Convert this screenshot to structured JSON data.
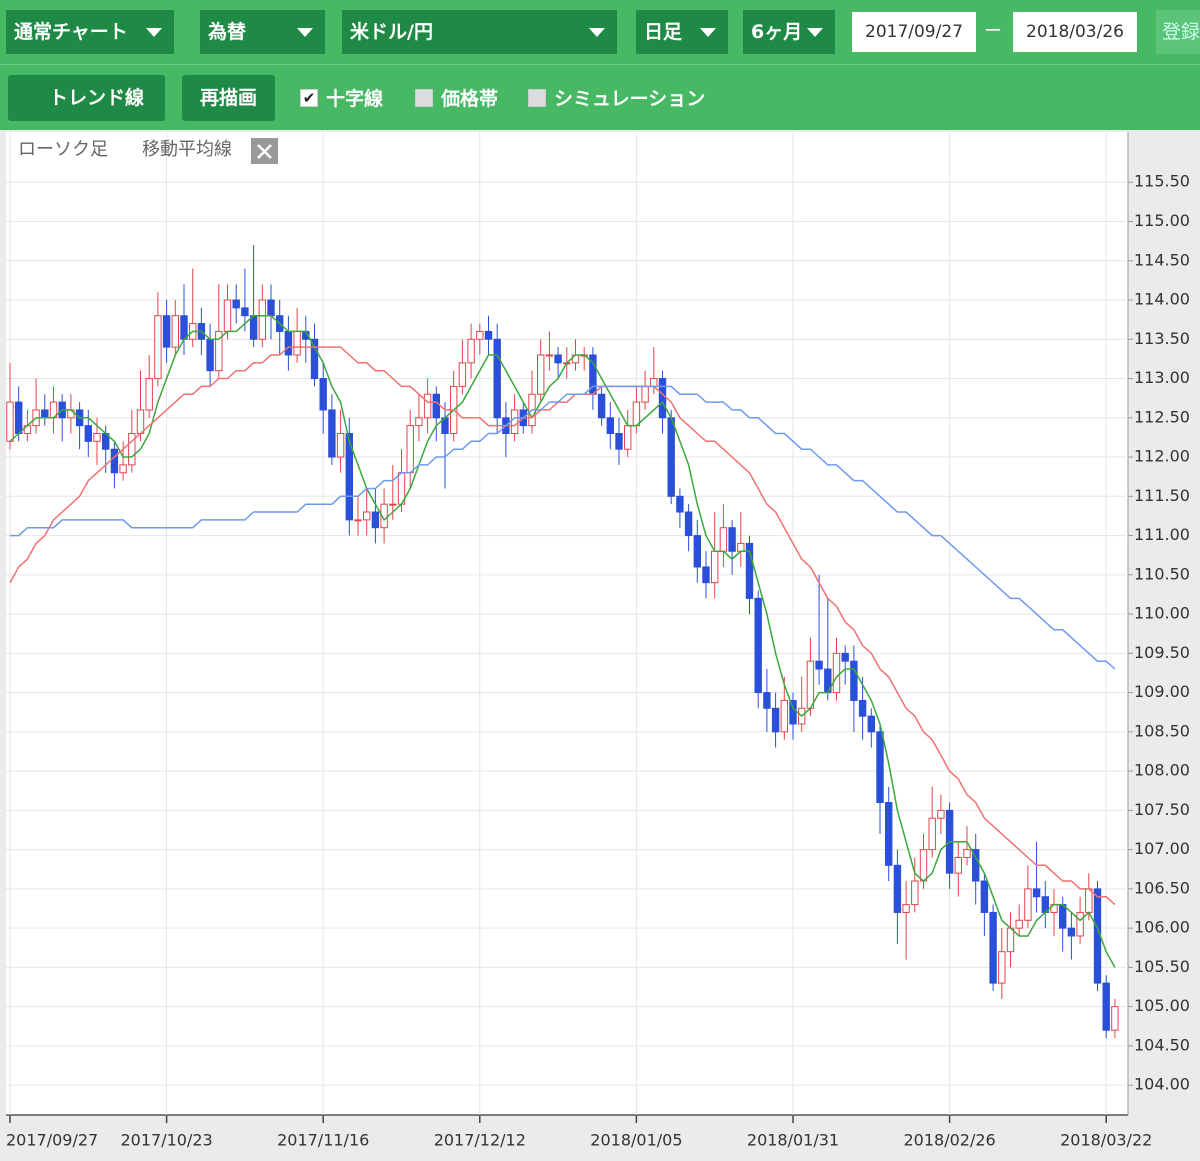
{
  "toolbar": {
    "row1": [
      {
        "label": "通常チャート",
        "dropdown": true
      },
      {
        "label": "為替",
        "dropdown": true
      },
      {
        "label": "米ドル/円",
        "dropdown": true
      },
      {
        "label": "日足",
        "dropdown": true
      },
      {
        "label": "6ヶ月",
        "dropdown": true
      }
    ],
    "date_from": "2017/09/27",
    "date_sep": "ー",
    "date_to": "2018/03/26",
    "register": "登録",
    "buttons": [
      "トレンド線",
      "再描画"
    ],
    "checkboxes": [
      {
        "label": "十字線",
        "checked": true
      },
      {
        "label": "価格帯",
        "checked": false
      },
      {
        "label": "シミュレーション",
        "checked": false
      }
    ]
  },
  "legend": [
    "ローソク足",
    "移動平均線"
  ],
  "chart_data": {
    "type": "candlestick",
    "up_color": "#e0454a",
    "down_color": "#2a4fd8",
    "grid": true,
    "categories": [
      "2017/09/27",
      null,
      null,
      null,
      null,
      null,
      null,
      null,
      null,
      null,
      null,
      null,
      null,
      null,
      null,
      null,
      null,
      null,
      "2017/10/23",
      null,
      null,
      null,
      null,
      null,
      null,
      null,
      null,
      null,
      null,
      null,
      null,
      null,
      null,
      null,
      null,
      null,
      "2017/11/16",
      null,
      null,
      null,
      null,
      null,
      null,
      null,
      null,
      null,
      null,
      null,
      null,
      null,
      null,
      null,
      null,
      null,
      "2017/12/12",
      null,
      null,
      null,
      null,
      null,
      null,
      null,
      null,
      null,
      null,
      null,
      null,
      null,
      null,
      null,
      null,
      null,
      "2018/01/05",
      null,
      null,
      null,
      null,
      null,
      null,
      null,
      null,
      null,
      null,
      null,
      null,
      null,
      null,
      null,
      null,
      null,
      "2018/01/31",
      null,
      null,
      null,
      null,
      null,
      null,
      null,
      null,
      null,
      null,
      null,
      null,
      null,
      null,
      null,
      null,
      null,
      "2018/02/26",
      null,
      null,
      null,
      null,
      null,
      null,
      null,
      null,
      null,
      null,
      null,
      null,
      null,
      null,
      null,
      null,
      null,
      "2018/03/22",
      null
    ],
    "open": [
      112.2,
      112.7,
      112.3,
      112.4,
      112.6,
      112.5,
      112.7,
      112.5,
      112.6,
      112.4,
      112.2,
      112.3,
      112.1,
      111.8,
      111.9,
      112.3,
      112.6,
      113.0,
      113.8,
      113.4,
      113.8,
      113.5,
      113.7,
      113.5,
      113.1,
      113.6,
      114.0,
      113.9,
      113.8,
      113.5,
      114.0,
      113.8,
      113.6,
      113.3,
      113.6,
      113.5,
      113.0,
      112.6,
      112.0,
      112.3,
      111.2,
      111.2,
      111.3,
      111.1,
      111.4,
      111.4,
      111.8,
      112.4,
      112.5,
      112.8,
      112.5,
      112.3,
      112.9,
      113.2,
      113.5,
      113.6,
      113.5,
      112.5,
      112.3,
      112.6,
      112.4,
      112.8,
      113.3,
      113.3,
      113.2,
      113.2,
      113.3,
      113.3,
      112.8,
      112.5,
      112.3,
      112.1,
      112.4,
      112.7,
      112.9,
      113.0,
      112.5,
      111.5,
      111.3,
      111.0,
      110.6,
      110.4,
      110.8,
      111.1,
      110.8,
      110.9,
      110.2,
      109.0,
      108.8,
      108.5,
      108.9,
      108.6,
      108.8,
      109.4,
      109.3,
      109.0,
      109.5,
      109.4,
      108.9,
      108.7,
      108.5,
      107.6,
      106.8,
      106.2,
      106.3,
      106.6,
      107.0,
      107.4,
      107.5,
      106.7,
      106.9,
      107.0,
      106.6,
      106.2,
      105.3,
      105.7,
      106.0,
      106.1,
      106.5,
      106.4,
      106.2,
      106.3,
      106.0,
      105.9,
      106.2,
      106.5,
      105.3,
      104.7
    ],
    "high": [
      113.2,
      112.9,
      112.6,
      113.0,
      112.8,
      112.9,
      112.8,
      112.8,
      112.7,
      112.6,
      112.5,
      112.4,
      112.2,
      112.2,
      112.6,
      113.1,
      113.3,
      114.1,
      114.0,
      114.0,
      114.2,
      114.4,
      113.9,
      113.7,
      114.2,
      114.2,
      114.2,
      114.4,
      114.7,
      114.2,
      114.2,
      114.0,
      113.8,
      113.9,
      113.8,
      113.7,
      113.2,
      112.8,
      112.6,
      112.5,
      111.5,
      111.6,
      111.6,
      111.6,
      111.9,
      112.1,
      112.6,
      112.8,
      113.0,
      112.9,
      112.7,
      113.1,
      113.5,
      113.7,
      113.7,
      113.8,
      113.7,
      112.7,
      112.8,
      112.7,
      113.1,
      113.5,
      113.6,
      113.4,
      113.4,
      113.5,
      113.4,
      113.4,
      112.9,
      112.7,
      112.5,
      112.6,
      112.9,
      113.1,
      113.4,
      113.1,
      112.6,
      111.6,
      111.4,
      111.2,
      110.8,
      111.3,
      111.4,
      111.2,
      111.3,
      111.0,
      110.3,
      109.3,
      109.0,
      109.2,
      109.0,
      109.2,
      109.7,
      110.5,
      110.2,
      109.7,
      109.6,
      109.6,
      109.2,
      108.8,
      108.6,
      107.8,
      107.0,
      106.6,
      106.9,
      107.2,
      107.8,
      107.7,
      107.6,
      107.1,
      107.3,
      107.2,
      106.7,
      106.3,
      106.0,
      106.2,
      106.3,
      106.8,
      107.1,
      106.6,
      106.5,
      106.4,
      106.2,
      106.4,
      106.7,
      106.6,
      105.4,
      105.1
    ],
    "low": [
      112.1,
      112.2,
      112.2,
      112.3,
      112.4,
      112.3,
      112.2,
      112.3,
      112.1,
      112.0,
      111.9,
      111.8,
      111.6,
      111.7,
      111.8,
      112.2,
      112.5,
      112.9,
      113.2,
      113.3,
      113.3,
      113.4,
      113.3,
      112.9,
      113.0,
      113.5,
      113.7,
      113.6,
      113.4,
      113.4,
      113.5,
      113.3,
      113.1,
      113.2,
      113.2,
      112.9,
      112.3,
      111.9,
      111.8,
      111.0,
      111.0,
      111.0,
      110.9,
      110.9,
      111.2,
      111.3,
      111.6,
      112.2,
      112.3,
      112.2,
      111.6,
      112.2,
      112.8,
      113.0,
      113.3,
      113.3,
      112.3,
      112.0,
      112.2,
      112.3,
      112.3,
      112.7,
      113.1,
      113.0,
      113.0,
      113.1,
      113.1,
      112.6,
      112.4,
      112.1,
      111.9,
      112.0,
      112.3,
      112.6,
      112.8,
      112.3,
      111.4,
      111.1,
      110.8,
      110.4,
      110.2,
      110.2,
      110.6,
      110.5,
      110.6,
      110.0,
      108.8,
      108.5,
      108.3,
      108.4,
      108.4,
      108.5,
      108.7,
      109.1,
      108.9,
      108.9,
      109.1,
      108.5,
      108.4,
      108.3,
      107.2,
      106.6,
      105.8,
      105.6,
      106.2,
      106.5,
      106.9,
      107.2,
      106.5,
      106.4,
      106.8,
      106.3,
      105.9,
      105.2,
      105.1,
      105.5,
      105.9,
      106.0,
      106.2,
      106.0,
      105.9,
      105.7,
      105.6,
      105.8,
      106.1,
      105.2,
      104.6,
      104.6
    ],
    "close": [
      112.7,
      112.3,
      112.4,
      112.6,
      112.5,
      112.7,
      112.5,
      112.6,
      112.4,
      112.2,
      112.3,
      112.1,
      111.8,
      111.9,
      112.3,
      112.6,
      113.0,
      113.8,
      113.4,
      113.8,
      113.5,
      113.7,
      113.5,
      113.1,
      113.6,
      114.0,
      113.9,
      113.8,
      113.5,
      114.0,
      113.8,
      113.6,
      113.3,
      113.6,
      113.5,
      113.0,
      112.6,
      112.0,
      112.3,
      111.2,
      111.2,
      111.3,
      111.1,
      111.4,
      111.4,
      111.8,
      112.4,
      112.5,
      112.8,
      112.5,
      112.3,
      112.9,
      113.2,
      113.5,
      113.6,
      113.5,
      112.5,
      112.3,
      112.6,
      112.4,
      112.8,
      113.3,
      113.3,
      113.2,
      113.2,
      113.3,
      113.3,
      112.8,
      112.5,
      112.3,
      112.1,
      112.4,
      112.7,
      112.9,
      113.0,
      112.5,
      111.5,
      111.3,
      111.0,
      110.6,
      110.4,
      110.8,
      111.1,
      110.8,
      110.9,
      110.2,
      109.0,
      108.8,
      108.5,
      108.9,
      108.6,
      108.8,
      109.4,
      109.3,
      109.0,
      109.5,
      109.4,
      108.9,
      108.7,
      108.5,
      107.6,
      106.8,
      106.2,
      106.3,
      106.6,
      107.0,
      107.4,
      107.5,
      106.7,
      106.9,
      107.0,
      106.6,
      106.2,
      105.3,
      105.7,
      106.0,
      106.1,
      106.5,
      106.4,
      106.2,
      106.3,
      106.0,
      105.9,
      106.2,
      106.5,
      105.3,
      104.7,
      105.0
    ],
    "series": [
      {
        "color": "#3aa83a",
        "values": [
          112.2,
          112.3,
          112.4,
          112.5,
          112.5,
          112.5,
          112.6,
          112.6,
          112.5,
          112.5,
          112.4,
          112.3,
          112.2,
          112.0,
          112.0,
          112.1,
          112.3,
          112.7,
          113.0,
          113.3,
          113.5,
          113.6,
          113.6,
          113.5,
          113.5,
          113.6,
          113.6,
          113.7,
          113.8,
          113.8,
          113.8,
          113.7,
          113.6,
          113.6,
          113.6,
          113.4,
          113.2,
          112.9,
          112.7,
          112.2,
          111.9,
          111.6,
          111.4,
          111.2,
          111.3,
          111.4,
          111.6,
          111.9,
          112.2,
          112.4,
          112.5,
          112.6,
          112.7,
          112.9,
          113.1,
          113.3,
          113.3,
          113.1,
          112.9,
          112.7,
          112.5,
          112.7,
          112.9,
          113.0,
          113.2,
          113.3,
          113.3,
          113.2,
          113.0,
          112.8,
          112.6,
          112.4,
          112.4,
          112.5,
          112.6,
          112.7,
          112.5,
          112.2,
          111.9,
          111.4,
          111.0,
          110.8,
          110.8,
          110.7,
          110.8,
          110.8,
          110.4,
          110.0,
          109.5,
          109.1,
          108.8,
          108.7,
          108.8,
          109.0,
          109.0,
          109.2,
          109.3,
          109.3,
          109.1,
          108.9,
          108.6,
          108.1,
          107.5,
          107.1,
          106.7,
          106.6,
          106.7,
          107.0,
          107.1,
          107.1,
          107.1,
          106.9,
          106.7,
          106.4,
          106.1,
          106.0,
          105.9,
          105.9,
          106.1,
          106.2,
          106.3,
          106.3,
          106.2,
          106.1,
          106.2,
          106.0,
          105.7,
          105.5
        ]
      },
      {
        "color": "#f07272",
        "values": [
          110.4,
          110.6,
          110.7,
          110.9,
          111.0,
          111.2,
          111.3,
          111.4,
          111.5,
          111.7,
          111.8,
          111.9,
          112.0,
          112.1,
          112.2,
          112.3,
          112.4,
          112.5,
          112.6,
          112.7,
          112.8,
          112.8,
          112.9,
          112.9,
          113.0,
          113.0,
          113.1,
          113.1,
          113.2,
          113.2,
          113.3,
          113.3,
          113.4,
          113.4,
          113.4,
          113.4,
          113.4,
          113.4,
          113.4,
          113.3,
          113.2,
          113.2,
          113.1,
          113.1,
          113.0,
          112.9,
          112.9,
          112.8,
          112.7,
          112.7,
          112.6,
          112.6,
          112.5,
          112.5,
          112.5,
          112.4,
          112.4,
          112.4,
          112.4,
          112.5,
          112.5,
          112.6,
          112.6,
          112.7,
          112.7,
          112.8,
          112.8,
          112.8,
          112.9,
          112.9,
          112.9,
          112.9,
          112.9,
          112.9,
          112.9,
          112.8,
          112.7,
          112.5,
          112.4,
          112.3,
          112.2,
          112.2,
          112.1,
          112.0,
          111.9,
          111.8,
          111.6,
          111.4,
          111.3,
          111.1,
          110.9,
          110.7,
          110.6,
          110.4,
          110.2,
          110.1,
          109.9,
          109.8,
          109.6,
          109.5,
          109.3,
          109.2,
          109.0,
          108.8,
          108.7,
          108.5,
          108.4,
          108.2,
          108.0,
          107.9,
          107.7,
          107.6,
          107.4,
          107.3,
          107.2,
          107.1,
          107.0,
          106.9,
          106.8,
          106.8,
          106.7,
          106.6,
          106.6,
          106.5,
          106.5,
          106.4,
          106.4,
          106.3
        ]
      },
      {
        "color": "#6d99ee",
        "values": [
          111.0,
          111.0,
          111.1,
          111.1,
          111.1,
          111.1,
          111.2,
          111.2,
          111.2,
          111.2,
          111.2,
          111.2,
          111.2,
          111.2,
          111.1,
          111.1,
          111.1,
          111.1,
          111.1,
          111.1,
          111.1,
          111.1,
          111.2,
          111.2,
          111.2,
          111.2,
          111.2,
          111.2,
          111.3,
          111.3,
          111.3,
          111.3,
          111.3,
          111.3,
          111.4,
          111.4,
          111.4,
          111.4,
          111.5,
          111.5,
          111.5,
          111.6,
          111.6,
          111.7,
          111.7,
          111.8,
          111.8,
          111.9,
          111.9,
          112.0,
          112.0,
          112.1,
          112.1,
          112.2,
          112.2,
          112.3,
          112.3,
          112.4,
          112.5,
          112.5,
          112.6,
          112.6,
          112.7,
          112.7,
          112.8,
          112.8,
          112.8,
          112.9,
          112.9,
          112.9,
          112.9,
          112.9,
          112.9,
          112.9,
          112.9,
          112.9,
          112.9,
          112.8,
          112.8,
          112.8,
          112.7,
          112.7,
          112.7,
          112.6,
          112.6,
          112.5,
          112.5,
          112.4,
          112.3,
          112.3,
          112.2,
          112.1,
          112.1,
          112.0,
          111.9,
          111.9,
          111.8,
          111.7,
          111.7,
          111.6,
          111.5,
          111.4,
          111.3,
          111.3,
          111.2,
          111.1,
          111.0,
          111.0,
          110.9,
          110.8,
          110.7,
          110.6,
          110.5,
          110.4,
          110.3,
          110.2,
          110.2,
          110.1,
          110.0,
          109.9,
          109.8,
          109.8,
          109.7,
          109.6,
          109.5,
          109.4,
          109.4,
          109.3
        ]
      }
    ],
    "ylim": [
      103.62,
      116.14
    ],
    "yticks": [
      {
        "value": 104,
        "label": "104.00"
      },
      {
        "value": 104.5,
        "label": "104.50"
      },
      {
        "value": 105,
        "label": "105.00"
      },
      {
        "value": 105.5,
        "label": "105.50"
      },
      {
        "value": 106,
        "label": "106.00"
      },
      {
        "value": 106.5,
        "label": "106.50"
      },
      {
        "value": 107,
        "label": "107.00"
      },
      {
        "value": 107.5,
        "label": "107.50"
      },
      {
        "value": 108,
        "label": "108.00"
      },
      {
        "value": 108.5,
        "label": "108.50"
      },
      {
        "value": 109,
        "label": "109.00"
      },
      {
        "value": 109.5,
        "label": "109.50"
      },
      {
        "value": 110,
        "label": "110.00"
      },
      {
        "value": 110.5,
        "label": "110.50"
      },
      {
        "value": 111,
        "label": "111.00"
      },
      {
        "value": 111.5,
        "label": "111.50"
      },
      {
        "value": 112,
        "label": "112.00"
      },
      {
        "value": 112.5,
        "label": "112.50"
      },
      {
        "value": 113,
        "label": "113.00"
      },
      {
        "value": 113.5,
        "label": "113.50"
      },
      {
        "value": 114,
        "label": "114.00"
      },
      {
        "value": 114.5,
        "label": "114.50"
      },
      {
        "value": 115,
        "label": "115.00"
      },
      {
        "value": 115.5,
        "label": "115.50"
      }
    ]
  }
}
